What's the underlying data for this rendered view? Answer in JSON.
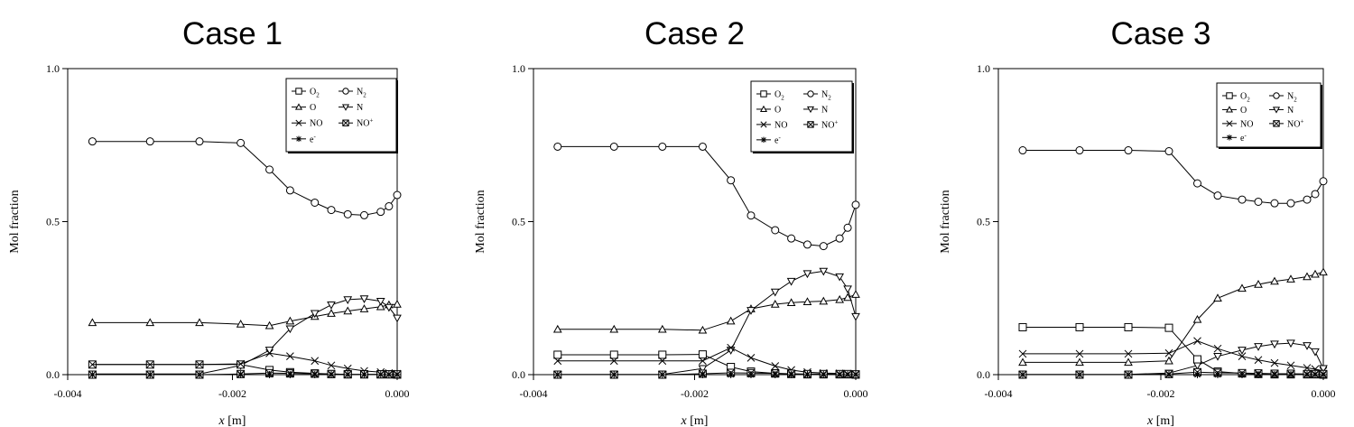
{
  "chart_data": [
    {
      "type": "line",
      "title": "Case 1",
      "xlabel_var": "x",
      "xlabel_unit": " [m]",
      "ylabel": "Mol fraction",
      "xlim": [
        -0.004,
        0.0
      ],
      "ylim": [
        0.0,
        1.0
      ],
      "xticks": [
        -0.004,
        -0.002,
        0.0
      ],
      "xtick_labels": [
        "-0.004",
        "-0.002",
        "0.000"
      ],
      "yticks": [
        0.0,
        0.5,
        1.0
      ],
      "ytick_labels": [
        "0.0",
        "0.5",
        "1.0"
      ],
      "legend": [
        "O2",
        "N2",
        "O",
        "N",
        "NO",
        "NO+",
        "e-"
      ],
      "x": [
        -0.0037,
        -0.003,
        -0.0024,
        -0.0019,
        -0.00155,
        -0.0013,
        -0.001,
        -0.0008,
        -0.0006,
        -0.0004,
        -0.0002,
        -0.0001,
        0.0
      ],
      "series": [
        {
          "name": "N2",
          "marker": "circle",
          "values": [
            0.762,
            0.762,
            0.762,
            0.757,
            0.67,
            0.602,
            0.562,
            0.538,
            0.524,
            0.521,
            0.532,
            0.55,
            0.587
          ]
        },
        {
          "name": "O",
          "marker": "triangle-up",
          "values": [
            0.17,
            0.17,
            0.17,
            0.165,
            0.16,
            0.175,
            0.19,
            0.2,
            0.208,
            0.215,
            0.222,
            0.228,
            0.23
          ]
        },
        {
          "name": "N",
          "marker": "triangle-down",
          "values": [
            0.002,
            0.002,
            0.002,
            0.03,
            0.08,
            0.15,
            0.2,
            0.228,
            0.245,
            0.248,
            0.24,
            0.22,
            0.185
          ]
        },
        {
          "name": "O2",
          "marker": "square",
          "values": [
            0.033,
            0.033,
            0.033,
            0.033,
            0.015,
            0.008,
            0.004,
            0.002,
            0.001,
            0.001,
            0.001,
            0.001,
            0.0
          ]
        },
        {
          "name": "NO",
          "marker": "x",
          "values": [
            0.033,
            0.033,
            0.033,
            0.035,
            0.07,
            0.06,
            0.045,
            0.03,
            0.02,
            0.012,
            0.008,
            0.005,
            0.003
          ]
        },
        {
          "name": "NO+",
          "marker": "square-x",
          "values": [
            0.0,
            0.0,
            0.0,
            0.002,
            0.005,
            0.004,
            0.003,
            0.002,
            0.001,
            0.001,
            0.001,
            0.001,
            0.001
          ]
        },
        {
          "name": "e-",
          "marker": "star",
          "values": [
            0.0,
            0.0,
            0.0,
            0.0,
            0.0,
            0.0,
            0.0,
            0.0,
            0.0,
            0.0,
            0.0,
            0.0,
            0.0
          ]
        }
      ]
    },
    {
      "type": "line",
      "title": "Case 2",
      "xlabel_var": "x",
      "xlabel_unit": " [m]",
      "ylabel": "Mol fraction",
      "xlim": [
        -0.004,
        0.0
      ],
      "ylim": [
        0.0,
        1.0
      ],
      "xticks": [
        -0.004,
        -0.002,
        0.0
      ],
      "xtick_labels": [
        "-0.004",
        "-0.002",
        "0.000"
      ],
      "yticks": [
        0.0,
        0.5,
        1.0
      ],
      "ytick_labels": [
        "0.0",
        "0.5",
        "1.0"
      ],
      "legend": [
        "O2",
        "N2",
        "O",
        "N",
        "NO",
        "NO+",
        "e-"
      ],
      "x": [
        -0.0037,
        -0.003,
        -0.0024,
        -0.0019,
        -0.00155,
        -0.0013,
        -0.001,
        -0.0008,
        -0.0006,
        -0.0004,
        -0.0002,
        -0.0001,
        0.0
      ],
      "series": [
        {
          "name": "N2",
          "marker": "circle",
          "values": [
            0.745,
            0.745,
            0.745,
            0.745,
            0.635,
            0.52,
            0.472,
            0.445,
            0.425,
            0.42,
            0.445,
            0.48,
            0.555
          ]
        },
        {
          "name": "O",
          "marker": "triangle-up",
          "values": [
            0.148,
            0.148,
            0.148,
            0.145,
            0.175,
            0.215,
            0.23,
            0.235,
            0.238,
            0.24,
            0.245,
            0.252,
            0.262
          ]
        },
        {
          "name": "N",
          "marker": "triangle-down",
          "values": [
            0.001,
            0.001,
            0.001,
            0.02,
            0.08,
            0.21,
            0.27,
            0.305,
            0.33,
            0.338,
            0.32,
            0.28,
            0.19
          ]
        },
        {
          "name": "O2",
          "marker": "square",
          "values": [
            0.065,
            0.065,
            0.065,
            0.066,
            0.025,
            0.01,
            0.004,
            0.002,
            0.001,
            0.001,
            0.001,
            0.001,
            0.0
          ]
        },
        {
          "name": "NO",
          "marker": "x",
          "values": [
            0.045,
            0.045,
            0.045,
            0.045,
            0.088,
            0.055,
            0.028,
            0.015,
            0.008,
            0.005,
            0.004,
            0.003,
            0.002
          ]
        },
        {
          "name": "NO+",
          "marker": "square-x",
          "values": [
            0.0,
            0.0,
            0.0,
            0.003,
            0.006,
            0.005,
            0.004,
            0.003,
            0.002,
            0.002,
            0.002,
            0.002,
            0.001
          ]
        },
        {
          "name": "e-",
          "marker": "star",
          "values": [
            0.0,
            0.0,
            0.0,
            0.0,
            0.0,
            0.0,
            0.0,
            0.0,
            0.0,
            0.0,
            0.0,
            0.0,
            0.0
          ]
        }
      ]
    },
    {
      "type": "line",
      "title": "Case 3",
      "xlabel_var": "x",
      "xlabel_unit": " [m]",
      "ylabel": "Mol fraction",
      "xlim": [
        -0.004,
        0.0
      ],
      "ylim": [
        0.0,
        1.0
      ],
      "xticks": [
        -0.004,
        -0.002,
        0.0
      ],
      "xtick_labels": [
        "-0.004",
        "-0.002",
        "0.000"
      ],
      "yticks": [
        0.0,
        0.5,
        1.0
      ],
      "ytick_labels": [
        "0.0",
        "0.5",
        "1.0"
      ],
      "legend": [
        "O2",
        "N2",
        "O",
        "N",
        "NO",
        "NO+",
        "e-"
      ],
      "x": [
        -0.0037,
        -0.003,
        -0.0024,
        -0.0019,
        -0.00155,
        -0.0013,
        -0.001,
        -0.0008,
        -0.0006,
        -0.0004,
        -0.0002,
        -0.0001,
        0.0
      ],
      "series": [
        {
          "name": "N2",
          "marker": "circle",
          "values": [
            0.733,
            0.733,
            0.733,
            0.73,
            0.625,
            0.585,
            0.572,
            0.565,
            0.56,
            0.56,
            0.572,
            0.59,
            0.632
          ]
        },
        {
          "name": "O",
          "marker": "triangle-up",
          "values": [
            0.04,
            0.04,
            0.04,
            0.045,
            0.18,
            0.25,
            0.282,
            0.295,
            0.305,
            0.312,
            0.32,
            0.328,
            0.335
          ]
        },
        {
          "name": "N",
          "marker": "triangle-down",
          "values": [
            0.001,
            0.001,
            0.001,
            0.005,
            0.03,
            0.06,
            0.08,
            0.092,
            0.1,
            0.103,
            0.095,
            0.075,
            0.02
          ]
        },
        {
          "name": "O2",
          "marker": "square",
          "values": [
            0.155,
            0.155,
            0.155,
            0.153,
            0.05,
            0.01,
            0.004,
            0.002,
            0.001,
            0.001,
            0.001,
            0.001,
            0.0
          ]
        },
        {
          "name": "NO",
          "marker": "x",
          "values": [
            0.068,
            0.068,
            0.068,
            0.07,
            0.11,
            0.085,
            0.06,
            0.048,
            0.038,
            0.03,
            0.022,
            0.018,
            0.012
          ]
        },
        {
          "name": "NO+",
          "marker": "square-x",
          "values": [
            0.0,
            0.0,
            0.0,
            0.002,
            0.008,
            0.006,
            0.005,
            0.004,
            0.003,
            0.003,
            0.002,
            0.002,
            0.002
          ]
        },
        {
          "name": "e-",
          "marker": "star",
          "values": [
            0.0,
            0.0,
            0.0,
            0.0,
            0.0,
            0.0,
            0.0,
            0.0,
            0.0,
            0.0,
            0.0,
            0.0,
            0.0
          ]
        }
      ]
    }
  ]
}
